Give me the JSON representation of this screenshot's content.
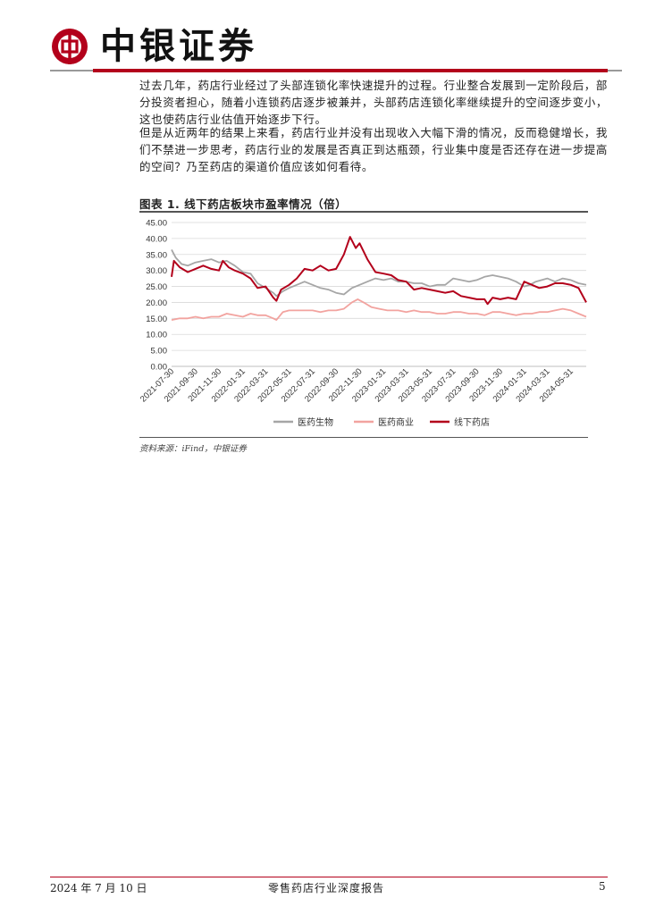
{
  "header": {
    "brand": "中银证券",
    "brand_color": "#b3001b",
    "logo_icon": "bank-of-china-logo-icon"
  },
  "body": {
    "paragraph_1": "过去几年，药店行业经过了头部连锁化率快速提升的过程。行业整合发展到一定阶段后，部分投资者担心，随着小连锁药店逐步被兼并，头部药店连锁化率继续提升的空间逐步变小，这也使药店行业估值开始逐步下行。",
    "paragraph_2": "但是从近两年的结果上来看，药店行业并没有出现收入大幅下滑的情况，反而稳健增长，我们不禁进一步思考，药店行业的发展是否真正到达瓶颈，行业集中度是否还存在进一步提高的空间？乃至药店的渠道价值应该如何看待。"
  },
  "figure": {
    "title": "图表 1. 线下药店板块市盈率情况（倍）",
    "source": "资料来源：iFind，中银证券"
  },
  "chart_data": {
    "type": "line",
    "ylim": [
      0,
      45
    ],
    "y_ticks": [
      "45.00",
      "40.00",
      "35.00",
      "30.00",
      "25.00",
      "20.00",
      "15.00",
      "10.00",
      "5.00",
      "0.00"
    ],
    "x_ticks": [
      "2021-07-30",
      "2021-09-30",
      "2021-11-30",
      "2022-01-31",
      "2022-03-31",
      "2022-05-31",
      "2022-07-31",
      "2022-09-30",
      "2022-11-30",
      "2023-01-31",
      "2023-03-31",
      "2023-05-31",
      "2023-07-31",
      "2023-09-30",
      "2023-11-30",
      "2024-01-31",
      "2024-03-31",
      "2024-05-31"
    ],
    "x_range": [
      "2021-07-30",
      "2024-07-10"
    ],
    "grid": true,
    "legend_position": "bottom",
    "series": [
      {
        "name": "医药生物",
        "color": "#a6a6a6",
        "points": [
          [
            "2021-07-30",
            36.5
          ],
          [
            "2021-08-10",
            34.0
          ],
          [
            "2021-08-25",
            32.0
          ],
          [
            "2021-09-10",
            31.5
          ],
          [
            "2021-09-30",
            32.5
          ],
          [
            "2021-10-20",
            33.0
          ],
          [
            "2021-11-10",
            33.5
          ],
          [
            "2021-11-30",
            32.5
          ],
          [
            "2021-12-20",
            33.0
          ],
          [
            "2022-01-10",
            31.5
          ],
          [
            "2022-01-31",
            29.5
          ],
          [
            "2022-02-20",
            29.0
          ],
          [
            "2022-03-10",
            26.0
          ],
          [
            "2022-03-31",
            24.5
          ],
          [
            "2022-04-20",
            23.0
          ],
          [
            "2022-04-28",
            22.0
          ],
          [
            "2022-05-15",
            23.5
          ],
          [
            "2022-05-31",
            24.5
          ],
          [
            "2022-06-20",
            25.5
          ],
          [
            "2022-07-10",
            26.5
          ],
          [
            "2022-07-31",
            25.5
          ],
          [
            "2022-08-20",
            24.5
          ],
          [
            "2022-09-10",
            24.0
          ],
          [
            "2022-09-30",
            23.0
          ],
          [
            "2022-10-20",
            22.5
          ],
          [
            "2022-11-10",
            24.5
          ],
          [
            "2022-11-30",
            25.5
          ],
          [
            "2022-12-20",
            26.5
          ],
          [
            "2023-01-10",
            27.5
          ],
          [
            "2023-01-31",
            27.0
          ],
          [
            "2023-02-20",
            27.5
          ],
          [
            "2023-03-10",
            26.5
          ],
          [
            "2023-03-31",
            26.5
          ],
          [
            "2023-04-20",
            26.0
          ],
          [
            "2023-05-10",
            26.0
          ],
          [
            "2023-05-31",
            25.0
          ],
          [
            "2023-06-20",
            25.5
          ],
          [
            "2023-07-10",
            25.5
          ],
          [
            "2023-07-31",
            27.5
          ],
          [
            "2023-08-20",
            27.0
          ],
          [
            "2023-09-10",
            26.5
          ],
          [
            "2023-09-30",
            27.0
          ],
          [
            "2023-10-20",
            28.0
          ],
          [
            "2023-11-10",
            28.5
          ],
          [
            "2023-11-30",
            28.0
          ],
          [
            "2023-12-20",
            27.5
          ],
          [
            "2024-01-10",
            26.5
          ],
          [
            "2024-01-31",
            25.0
          ],
          [
            "2024-02-15",
            25.5
          ],
          [
            "2024-03-01",
            26.5
          ],
          [
            "2024-03-31",
            27.5
          ],
          [
            "2024-04-20",
            26.5
          ],
          [
            "2024-05-10",
            27.5
          ],
          [
            "2024-05-31",
            27.0
          ],
          [
            "2024-06-20",
            26.0
          ],
          [
            "2024-07-10",
            25.5
          ]
        ]
      },
      {
        "name": "医药商业",
        "color": "#f2a39f",
        "points": [
          [
            "2021-07-30",
            14.5
          ],
          [
            "2021-08-20",
            15.0
          ],
          [
            "2021-09-10",
            15.0
          ],
          [
            "2021-09-30",
            15.5
          ],
          [
            "2021-10-20",
            15.0
          ],
          [
            "2021-11-10",
            15.5
          ],
          [
            "2021-11-30",
            15.5
          ],
          [
            "2021-12-20",
            16.5
          ],
          [
            "2022-01-10",
            16.0
          ],
          [
            "2022-01-31",
            15.5
          ],
          [
            "2022-02-20",
            16.5
          ],
          [
            "2022-03-10",
            16.0
          ],
          [
            "2022-03-31",
            16.0
          ],
          [
            "2022-04-20",
            15.0
          ],
          [
            "2022-04-28",
            14.5
          ],
          [
            "2022-05-15",
            17.0
          ],
          [
            "2022-05-31",
            17.5
          ],
          [
            "2022-06-20",
            17.5
          ],
          [
            "2022-07-10",
            17.5
          ],
          [
            "2022-07-31",
            17.5
          ],
          [
            "2022-08-20",
            17.0
          ],
          [
            "2022-09-10",
            17.5
          ],
          [
            "2022-09-30",
            17.5
          ],
          [
            "2022-10-20",
            18.0
          ],
          [
            "2022-11-10",
            20.0
          ],
          [
            "2022-11-25",
            21.0
          ],
          [
            "2022-12-10",
            20.0
          ],
          [
            "2022-12-31",
            18.5
          ],
          [
            "2023-01-20",
            18.0
          ],
          [
            "2023-02-10",
            17.5
          ],
          [
            "2023-03-10",
            17.5
          ],
          [
            "2023-03-31",
            17.0
          ],
          [
            "2023-04-20",
            17.5
          ],
          [
            "2023-05-10",
            17.0
          ],
          [
            "2023-05-31",
            17.0
          ],
          [
            "2023-06-20",
            16.5
          ],
          [
            "2023-07-10",
            16.5
          ],
          [
            "2023-07-31",
            17.0
          ],
          [
            "2023-08-20",
            17.0
          ],
          [
            "2023-09-10",
            16.5
          ],
          [
            "2023-09-30",
            16.5
          ],
          [
            "2023-10-20",
            16.0
          ],
          [
            "2023-11-10",
            17.0
          ],
          [
            "2023-11-30",
            17.0
          ],
          [
            "2023-12-20",
            16.5
          ],
          [
            "2024-01-10",
            16.0
          ],
          [
            "2024-01-31",
            16.5
          ],
          [
            "2024-02-20",
            16.5
          ],
          [
            "2024-03-10",
            17.0
          ],
          [
            "2024-03-31",
            17.0
          ],
          [
            "2024-04-20",
            17.5
          ],
          [
            "2024-05-10",
            18.0
          ],
          [
            "2024-05-31",
            17.5
          ],
          [
            "2024-06-20",
            16.5
          ],
          [
            "2024-07-10",
            15.5
          ]
        ]
      },
      {
        "name": "线下药店",
        "color": "#b3001b",
        "points": [
          [
            "2021-07-30",
            28.0
          ],
          [
            "2021-08-05",
            33.0
          ],
          [
            "2021-08-20",
            31.0
          ],
          [
            "2021-09-10",
            29.5
          ],
          [
            "2021-09-30",
            30.5
          ],
          [
            "2021-10-20",
            31.5
          ],
          [
            "2021-11-10",
            30.5
          ],
          [
            "2021-11-30",
            30.0
          ],
          [
            "2021-12-10",
            33.0
          ],
          [
            "2021-12-25",
            31.0
          ],
          [
            "2022-01-10",
            30.0
          ],
          [
            "2022-01-31",
            29.0
          ],
          [
            "2022-02-20",
            27.5
          ],
          [
            "2022-03-10",
            24.5
          ],
          [
            "2022-03-31",
            25.0
          ],
          [
            "2022-04-20",
            21.5
          ],
          [
            "2022-04-28",
            20.5
          ],
          [
            "2022-05-10",
            24.0
          ],
          [
            "2022-05-31",
            25.5
          ],
          [
            "2022-06-20",
            27.5
          ],
          [
            "2022-07-10",
            30.5
          ],
          [
            "2022-07-31",
            30.0
          ],
          [
            "2022-08-20",
            31.5
          ],
          [
            "2022-09-10",
            30.0
          ],
          [
            "2022-09-30",
            30.5
          ],
          [
            "2022-10-20",
            35.0
          ],
          [
            "2022-11-05",
            40.5
          ],
          [
            "2022-11-20",
            37.0
          ],
          [
            "2022-11-30",
            38.5
          ],
          [
            "2022-12-20",
            33.5
          ],
          [
            "2023-01-10",
            29.5
          ],
          [
            "2023-01-31",
            29.0
          ],
          [
            "2023-02-20",
            28.5
          ],
          [
            "2023-03-10",
            27.0
          ],
          [
            "2023-03-31",
            26.5
          ],
          [
            "2023-04-20",
            24.0
          ],
          [
            "2023-05-10",
            24.5
          ],
          [
            "2023-05-31",
            24.0
          ],
          [
            "2023-06-20",
            23.5
          ],
          [
            "2023-07-10",
            23.0
          ],
          [
            "2023-07-31",
            23.5
          ],
          [
            "2023-08-20",
            22.0
          ],
          [
            "2023-09-10",
            21.5
          ],
          [
            "2023-09-30",
            21.0
          ],
          [
            "2023-10-20",
            21.0
          ],
          [
            "2023-10-28",
            19.5
          ],
          [
            "2023-11-10",
            21.5
          ],
          [
            "2023-11-30",
            21.0
          ],
          [
            "2023-12-20",
            21.5
          ],
          [
            "2024-01-10",
            21.0
          ],
          [
            "2024-01-31",
            26.5
          ],
          [
            "2024-02-20",
            25.5
          ],
          [
            "2024-03-10",
            24.5
          ],
          [
            "2024-03-31",
            25.0
          ],
          [
            "2024-04-20",
            26.0
          ],
          [
            "2024-05-10",
            26.0
          ],
          [
            "2024-05-31",
            25.5
          ],
          [
            "2024-06-20",
            24.5
          ],
          [
            "2024-07-10",
            20.0
          ]
        ]
      }
    ]
  },
  "footer": {
    "date": "2024 年 7 月 10 日",
    "title": "零售药店行业深度报告",
    "page": "5"
  }
}
